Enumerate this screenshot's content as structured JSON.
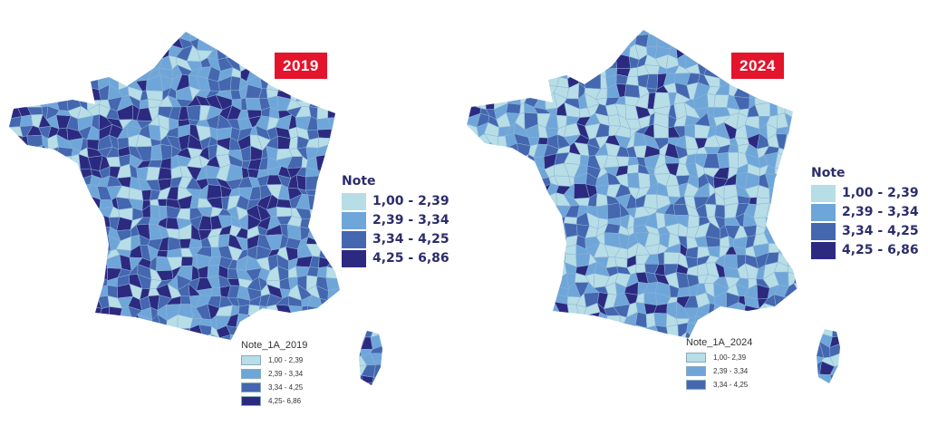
{
  "colors": {
    "class1": "#b7dde6",
    "class2": "#6fa6d9",
    "class3": "#4467b0",
    "class4": "#2c2a80",
    "badge": "#e3142b",
    "text": "#2b2d6b"
  },
  "maps": [
    {
      "year_badge": "2019",
      "legend_title": "Note",
      "legend": [
        "1,00 - 2,39",
        "2,39 - 3,34",
        "3,34 - 4,25",
        "4,25 - 6,86"
      ],
      "small_legend_title": "Note_1A_2019",
      "small_legend": [
        "1,00 - 2,39",
        "2,39 - 3,34",
        "3,34 - 4,25",
        "4,25- 6,86"
      ]
    },
    {
      "year_badge": "2024",
      "legend_title": "Note",
      "legend": [
        "1,00 - 2,39",
        "2,39 - 3,34",
        "3,34 - 4,25",
        "4,25 - 6,86"
      ],
      "small_legend_title": "Note_1A_2024",
      "small_legend": [
        "1,00- 2,39",
        "2,39 - 3,34",
        "3,34 - 4,25"
      ]
    }
  ]
}
